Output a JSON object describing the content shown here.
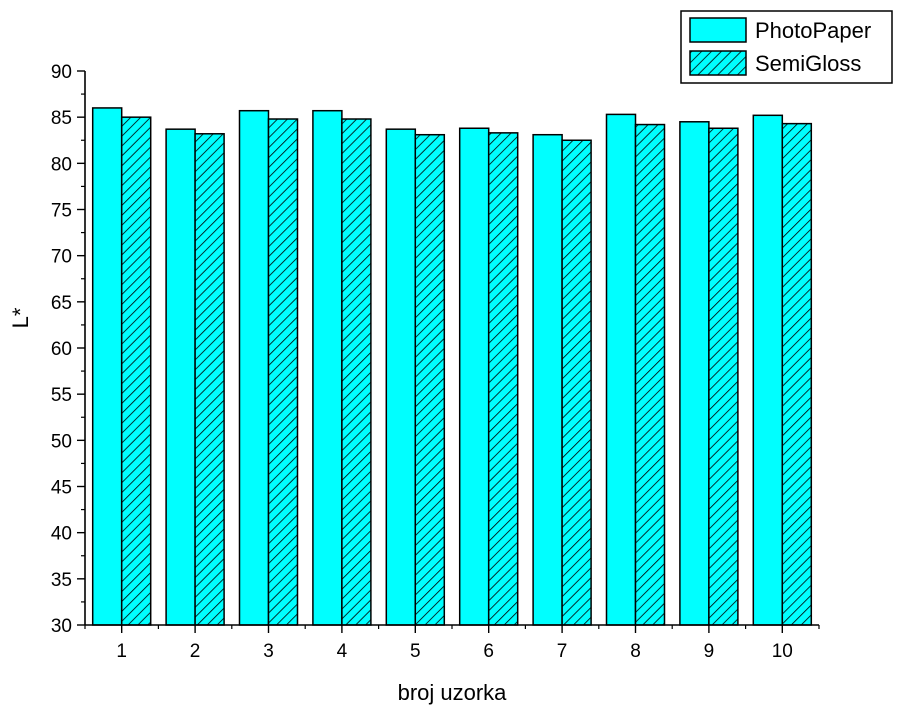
{
  "chart_data": {
    "type": "bar",
    "title": "",
    "xlabel": "broj uzorka",
    "ylabel": "L*",
    "ylim": [
      30,
      90
    ],
    "yticks": [
      30,
      35,
      40,
      45,
      50,
      55,
      60,
      65,
      70,
      75,
      80,
      85,
      90
    ],
    "categories": [
      "1",
      "2",
      "3",
      "4",
      "5",
      "6",
      "7",
      "8",
      "9",
      "10"
    ],
    "series": [
      {
        "name": "PhotoPaper",
        "fill": "solid",
        "color": "#00FFFF",
        "values": [
          86.0,
          83.7,
          85.7,
          85.7,
          83.7,
          83.8,
          83.1,
          85.3,
          84.5,
          85.2
        ]
      },
      {
        "name": "SemiGloss",
        "fill": "hatched",
        "color": "#00FFFF",
        "values": [
          85.0,
          83.2,
          84.8,
          84.8,
          83.1,
          83.3,
          82.5,
          84.2,
          83.8,
          84.3
        ]
      }
    ],
    "legend_position": "top-right",
    "grid": false
  }
}
